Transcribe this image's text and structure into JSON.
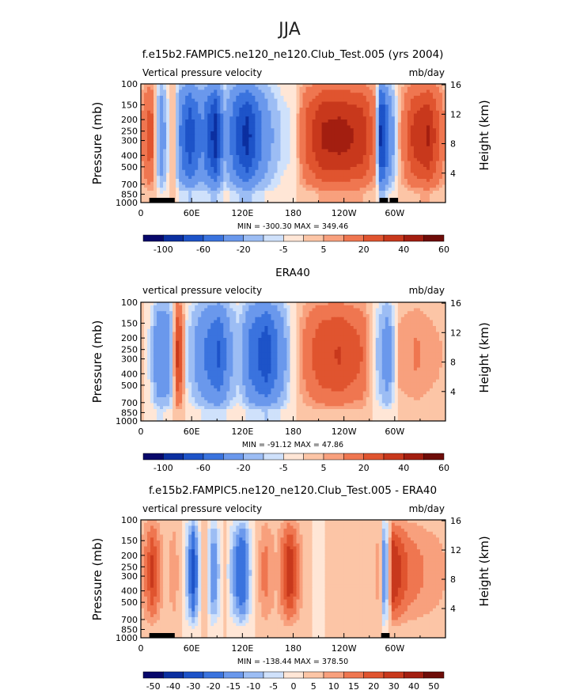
{
  "figure_title": "JJA",
  "chart_data": [
    {
      "type": "heatmap",
      "title": "f.e15b2.FAMPIC5.ne120_ne120.Club_Test.005 (yrs 2004)",
      "left_label": "Vertical pressure velocity",
      "right_label": "mb/day",
      "ylabel": "Pressure (mb)",
      "y2label": "Height (km)",
      "xticks": [
        "0",
        "60E",
        "120E",
        "180",
        "120W",
        "60W"
      ],
      "xtick_values": [
        0,
        60,
        120,
        180,
        240,
        300
      ],
      "xlim": [
        0,
        360
      ],
      "yticks": [
        "100",
        "150",
        "200",
        "250",
        "300",
        "400",
        "500",
        "700",
        "850",
        "1000"
      ],
      "ytick_values": [
        100,
        150,
        200,
        250,
        300,
        400,
        500,
        700,
        850,
        1000
      ],
      "ylim": [
        100,
        1000
      ],
      "y2ticks": [
        "16",
        "12",
        "8",
        "4"
      ],
      "y2tick_values": [
        16,
        12,
        8,
        4
      ],
      "stats": "MIN = -300.30   MAX = 349.46",
      "colorbar_labels": [
        "-100",
        "-60",
        "-20",
        "-5",
        "5",
        "20",
        "40",
        "60"
      ],
      "colorbar_levels": [
        -100,
        -80,
        -60,
        -40,
        -20,
        -10,
        -5,
        0,
        5,
        10,
        20,
        30,
        40,
        50,
        60
      ],
      "field_scale": 1.0,
      "topography": [
        [
          10,
          40
        ],
        [
          282,
          292
        ],
        [
          294,
          304
        ]
      ],
      "columns": [
        {
          "lon": 0,
          "v": 8
        },
        {
          "lon": 12,
          "v": 26
        },
        {
          "lon": 24,
          "v": -32
        },
        {
          "lon": 38,
          "v": 12
        },
        {
          "lon": 48,
          "v": -44
        },
        {
          "lon": 58,
          "v": -68
        },
        {
          "lon": 72,
          "v": -36
        },
        {
          "lon": 88,
          "v": -84
        },
        {
          "lon": 100,
          "v": -18
        },
        {
          "lon": 112,
          "v": -56
        },
        {
          "lon": 126,
          "v": -82
        },
        {
          "lon": 140,
          "v": -44
        },
        {
          "lon": 152,
          "v": -22
        },
        {
          "lon": 166,
          "v": -8
        },
        {
          "lon": 180,
          "v": -4
        },
        {
          "lon": 196,
          "v": 22
        },
        {
          "lon": 214,
          "v": 38
        },
        {
          "lon": 236,
          "v": 40
        },
        {
          "lon": 262,
          "v": 34
        },
        {
          "lon": 278,
          "v": 12
        },
        {
          "lon": 284,
          "v": -90
        },
        {
          "lon": 292,
          "v": -40
        },
        {
          "lon": 306,
          "v": 6
        },
        {
          "lon": 322,
          "v": 30
        },
        {
          "lon": 340,
          "v": 38
        },
        {
          "lon": 360,
          "v": 8
        }
      ]
    },
    {
      "type": "heatmap",
      "title": "ERA40",
      "left_label": "vertical pressure velocity",
      "right_label": "mb/day",
      "ylabel": "Pressure (mb)",
      "y2label": "Height (km)",
      "xticks": [
        "0",
        "60E",
        "120E",
        "180",
        "120W",
        "60W"
      ],
      "xtick_values": [
        0,
        60,
        120,
        180,
        240,
        300
      ],
      "xlim": [
        0,
        360
      ],
      "yticks": [
        "100",
        "150",
        "200",
        "250",
        "300",
        "400",
        "500",
        "700",
        "850",
        "1000"
      ],
      "ytick_values": [
        100,
        150,
        200,
        250,
        300,
        400,
        500,
        700,
        850,
        1000
      ],
      "ylim": [
        100,
        1000
      ],
      "y2ticks": [
        "16",
        "12",
        "8",
        "4"
      ],
      "y2tick_values": [
        16,
        12,
        8,
        4
      ],
      "stats": "MIN = -91.12   MAX = 47.86",
      "colorbar_labels": [
        "-100",
        "-60",
        "-20",
        "-5",
        "5",
        "20",
        "40",
        "60"
      ],
      "colorbar_levels": [
        -100,
        -80,
        -60,
        -40,
        -20,
        -10,
        -5,
        0,
        5,
        10,
        20,
        30,
        40,
        50,
        60
      ],
      "field_scale": 1.0,
      "topography": [],
      "columns": [
        {
          "lon": 0,
          "v": 4
        },
        {
          "lon": 12,
          "v": -8
        },
        {
          "lon": 22,
          "v": -38
        },
        {
          "lon": 34,
          "v": -28
        },
        {
          "lon": 44,
          "v": 34
        },
        {
          "lon": 54,
          "v": -6
        },
        {
          "lon": 64,
          "v": -20
        },
        {
          "lon": 76,
          "v": -38
        },
        {
          "lon": 92,
          "v": -58
        },
        {
          "lon": 106,
          "v": -22
        },
        {
          "lon": 116,
          "v": -10
        },
        {
          "lon": 130,
          "v": -46
        },
        {
          "lon": 148,
          "v": -68
        },
        {
          "lon": 164,
          "v": -34
        },
        {
          "lon": 178,
          "v": -4
        },
        {
          "lon": 196,
          "v": 14
        },
        {
          "lon": 214,
          "v": 26
        },
        {
          "lon": 236,
          "v": 28
        },
        {
          "lon": 262,
          "v": 18
        },
        {
          "lon": 282,
          "v": -14
        },
        {
          "lon": 292,
          "v": -30
        },
        {
          "lon": 304,
          "v": 6
        },
        {
          "lon": 326,
          "v": 10
        },
        {
          "lon": 346,
          "v": 6
        },
        {
          "lon": 360,
          "v": 4
        }
      ]
    },
    {
      "type": "heatmap",
      "title": "f.e15b2.FAMPIC5.ne120_ne120.Club_Test.005 - ERA40",
      "left_label": "vertical pressure velocity",
      "right_label": "mb/day",
      "ylabel": "Pressure (mb)",
      "y2label": "Height (km)",
      "xticks": [
        "0",
        "60E",
        "120E",
        "180",
        "120W",
        "60W"
      ],
      "xtick_values": [
        0,
        60,
        120,
        180,
        240,
        300
      ],
      "xlim": [
        0,
        360
      ],
      "yticks": [
        "100",
        "150",
        "200",
        "250",
        "300",
        "400",
        "500",
        "700",
        "850",
        "1000"
      ],
      "ytick_values": [
        100,
        150,
        200,
        250,
        300,
        400,
        500,
        700,
        850,
        1000
      ],
      "ylim": [
        100,
        1000
      ],
      "y2ticks": [
        "16",
        "12",
        "8",
        "4"
      ],
      "y2tick_values": [
        16,
        12,
        8,
        4
      ],
      "stats": "MIN = -138.44   MAX = 378.50",
      "colorbar_labels": [
        "-50",
        "-40",
        "-30",
        "-20",
        "-15",
        "-10",
        "-5",
        "0",
        "5",
        "10",
        "15",
        "20",
        "30",
        "40",
        "50"
      ],
      "colorbar_levels": [
        -50,
        -40,
        -30,
        -20,
        -15,
        -10,
        -5,
        0,
        5,
        10,
        15,
        20,
        30,
        40,
        50
      ],
      "field_scale": 0.6,
      "topography": [
        [
          10,
          40
        ],
        [
          284,
          294
        ]
      ],
      "columns": [
        {
          "lon": 0,
          "v": 8
        },
        {
          "lon": 14,
          "v": 34
        },
        {
          "lon": 28,
          "v": 4
        },
        {
          "lon": 40,
          "v": 14
        },
        {
          "lon": 52,
          "v": -8
        },
        {
          "lon": 62,
          "v": -52
        },
        {
          "lon": 74,
          "v": 12
        },
        {
          "lon": 86,
          "v": -36
        },
        {
          "lon": 98,
          "v": 6
        },
        {
          "lon": 110,
          "v": -26
        },
        {
          "lon": 120,
          "v": -48
        },
        {
          "lon": 132,
          "v": -6
        },
        {
          "lon": 146,
          "v": 20
        },
        {
          "lon": 160,
          "v": 8
        },
        {
          "lon": 176,
          "v": 40
        },
        {
          "lon": 190,
          "v": 10
        },
        {
          "lon": 206,
          "v": -4
        },
        {
          "lon": 226,
          "v": 4
        },
        {
          "lon": 250,
          "v": 6
        },
        {
          "lon": 270,
          "v": 2
        },
        {
          "lon": 282,
          "v": 12
        },
        {
          "lon": 288,
          "v": -40
        },
        {
          "lon": 298,
          "v": 40
        },
        {
          "lon": 316,
          "v": 22
        },
        {
          "lon": 338,
          "v": 14
        },
        {
          "lon": 360,
          "v": 8
        }
      ]
    }
  ],
  "colors": {
    "palette": [
      "#08086b",
      "#0b2fa0",
      "#1d53c8",
      "#3a73de",
      "#6a98ec",
      "#9cbdf4",
      "#cfe1fb",
      "#ffe6d6",
      "#fcc5a6",
      "#f8a07d",
      "#ef7650",
      "#e0542f",
      "#c8381c",
      "#a31e10",
      "#6e0c08"
    ]
  }
}
